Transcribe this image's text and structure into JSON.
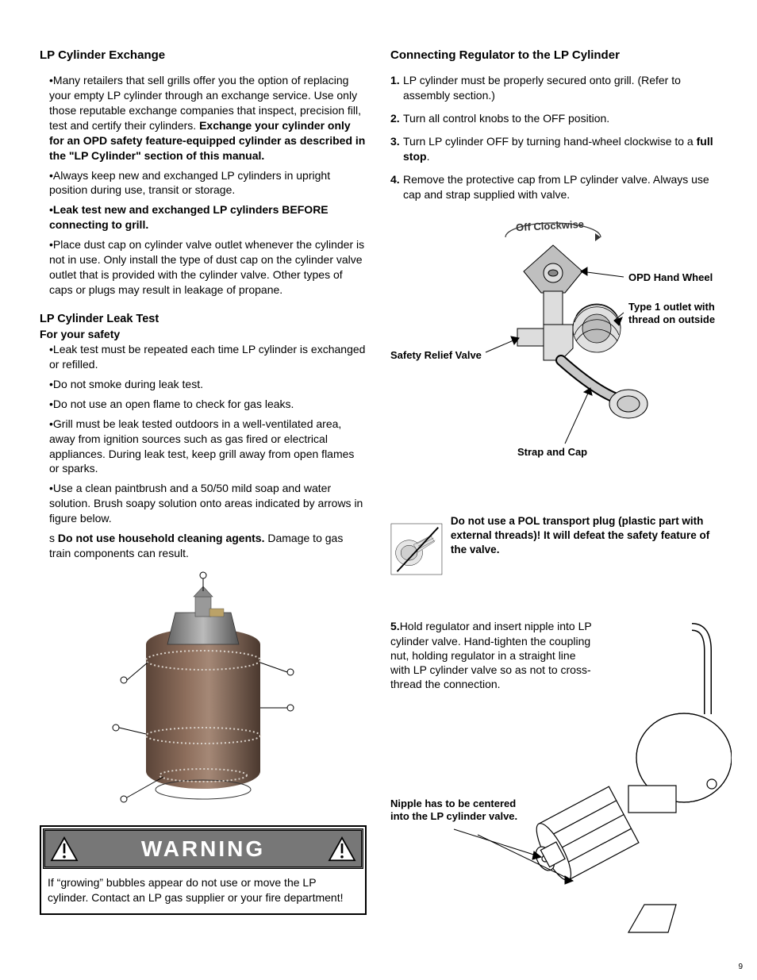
{
  "page_number": "9",
  "left": {
    "h_exchange": "LP Cylinder Exchange",
    "exchange_bullets": [
      {
        "pre": "•Many retailers that sell grills offer you the option of replacing your empty LP cylinder through an exchange service. Use only those reputable exchange companies that inspect, precision fill, test and certify their cylinders.  ",
        "bold": "Exchange your cylinder only for an OPD safety feature-equipped cylinder as described in the \"LP Cylinder\" section of this manual.",
        "post": ""
      },
      {
        "pre": "•Always keep new and exchanged LP cylinders in upright position during use, transit or storage.",
        "bold": "",
        "post": ""
      },
      {
        "pre": "•",
        "bold": "Leak test new and exchanged LP cylinders BEFORE connecting to grill.",
        "post": ""
      },
      {
        "pre": "•Place dust cap on cylinder valve outlet whenever the cylinder is not in use. Only install the type of dust cap on the cylinder valve outlet that is provided with the cylinder valve. Other types of caps or plugs may result in leakage of propane.",
        "bold": "",
        "post": ""
      }
    ],
    "h_leak": "LP Cylinder Leak Test",
    "leak_sub": "For your safety",
    "leak_bullets": [
      {
        "pre": "•Leak test must be repeated each time LP cylinder is exchanged or refilled.",
        "bold": "",
        "post": ""
      },
      {
        "pre": "•Do not smoke during leak test.",
        "bold": "",
        "post": ""
      },
      {
        "pre": "•Do not use an open flame to check for gas leaks.",
        "bold": "",
        "post": ""
      },
      {
        "pre": "•Grill must be leak tested outdoors in a well-ventilated area, away from ignition sources such as gas fired or electrical appliances. During leak test, keep grill away from open flames or sparks.",
        "bold": "",
        "post": ""
      },
      {
        "pre": "•Use a clean paintbrush and a 50/50 mild soap and water solution. Brush soapy solution onto areas indicated by arrows in figure below.",
        "bold": "",
        "post": ""
      },
      {
        "pre": "s ",
        "bold": "Do not use household cleaning agents.",
        "post": " Damage to gas train components can result."
      }
    ],
    "warning_label": "WARNING",
    "warning_text": "If “growing” bubbles appear do not use or move the LP cylinder. Contact an LP gas supplier or your fire department!"
  },
  "right": {
    "h_connect": "Connecting Regulator to the LP Cylinder",
    "steps": [
      {
        "n": "1.",
        "pre": "LP cylinder must be properly secured onto grill. (Refer to assembly section.)",
        "bold": "",
        "post": ""
      },
      {
        "n": "2.",
        "pre": "Turn all control knobs to the OFF position.",
        "bold": "",
        "post": ""
      },
      {
        "n": "3.",
        "pre": "Turn LP cylinder OFF by turning hand-wheel clockwise to a ",
        "bold": "full stop",
        "post": "."
      },
      {
        "n": "4.",
        "pre": "Remove the protective cap from LP cylinder valve. Always use cap and strap supplied with valve.",
        "bold": "",
        "post": ""
      }
    ],
    "callouts": {
      "off_clockwise": "Off Clockwise",
      "opd": "OPD Hand Wheel",
      "type1": "Type 1 outlet with thread on outside",
      "safety": "Safety Relief Valve",
      "strap": "Strap and Cap"
    },
    "pol_warning": "Do not use a POL transport plug (plastic part with external threads)! It will defeat the safety feature of the valve.",
    "step5": {
      "n": "5.",
      "text": "Hold regulator and insert nipple into LP cylinder valve. Hand-tighten the coupling nut, holding regulator in a straight line with LP cylinder valve so as not to cross-thread the connection."
    },
    "nipple_label": "Nipple has to be centered into the LP cylinder valve."
  },
  "colors": {
    "warning_bg": "#777777",
    "tank_brown": "#7a5b4a",
    "tank_rim": "#8a8a8a",
    "valve_gray": "#b0b0b0"
  }
}
